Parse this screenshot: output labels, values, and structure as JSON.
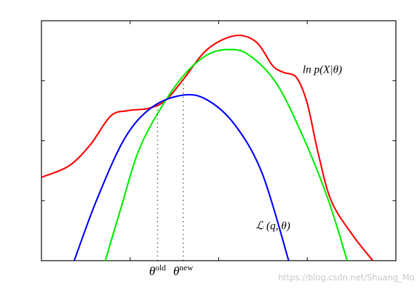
{
  "chart_data": {
    "type": "line",
    "xlim": [
      0,
      4
    ],
    "ylim": [
      0,
      4
    ],
    "xticks": [
      1,
      2,
      3
    ],
    "yticks": [
      1,
      2,
      3
    ],
    "series": [
      {
        "name": "ln p(X|θ)",
        "color": "#ff0000",
        "x": [
          0,
          0.31,
          0.55,
          0.78,
          0.97,
          1.21,
          1.4,
          1.6,
          1.87,
          2.18,
          2.42,
          2.61,
          2.73,
          2.88,
          3.0,
          3.12,
          3.27,
          3.51,
          3.74
        ],
        "values": [
          1.39,
          1.58,
          1.93,
          2.41,
          2.5,
          2.54,
          2.67,
          3.02,
          3.52,
          3.75,
          3.65,
          3.25,
          3.14,
          3.05,
          2.62,
          1.81,
          1.0,
          0.43,
          0
        ]
      },
      {
        "color": "#00ee00",
        "x": [
          0.72,
          0.9,
          1.09,
          1.33,
          1.6,
          1.87,
          2.11,
          2.34,
          2.65,
          2.96,
          3.24,
          3.45
        ],
        "values": [
          0,
          0.89,
          1.81,
          2.5,
          3.08,
          3.43,
          3.52,
          3.43,
          2.96,
          2.04,
          1.0,
          0
        ]
      },
      {
        "name": "ℒ (q, θ)",
        "color": "#0000ff",
        "x": [
          0.37,
          0.62,
          0.94,
          1.25,
          1.6,
          1.87,
          2.18,
          2.49,
          2.79
        ],
        "values": [
          0,
          1.0,
          2.04,
          2.56,
          2.76,
          2.68,
          2.27,
          1.46,
          0
        ]
      }
    ],
    "markers": [
      {
        "x": 1.31,
        "y": 2.6,
        "symbol": "θ",
        "sup": "old"
      },
      {
        "x": 1.6,
        "y": 3.02,
        "symbol": "θ",
        "sup": "new"
      }
    ],
    "watermark": "https://blog.csdn.net/Shuang_Mo"
  }
}
